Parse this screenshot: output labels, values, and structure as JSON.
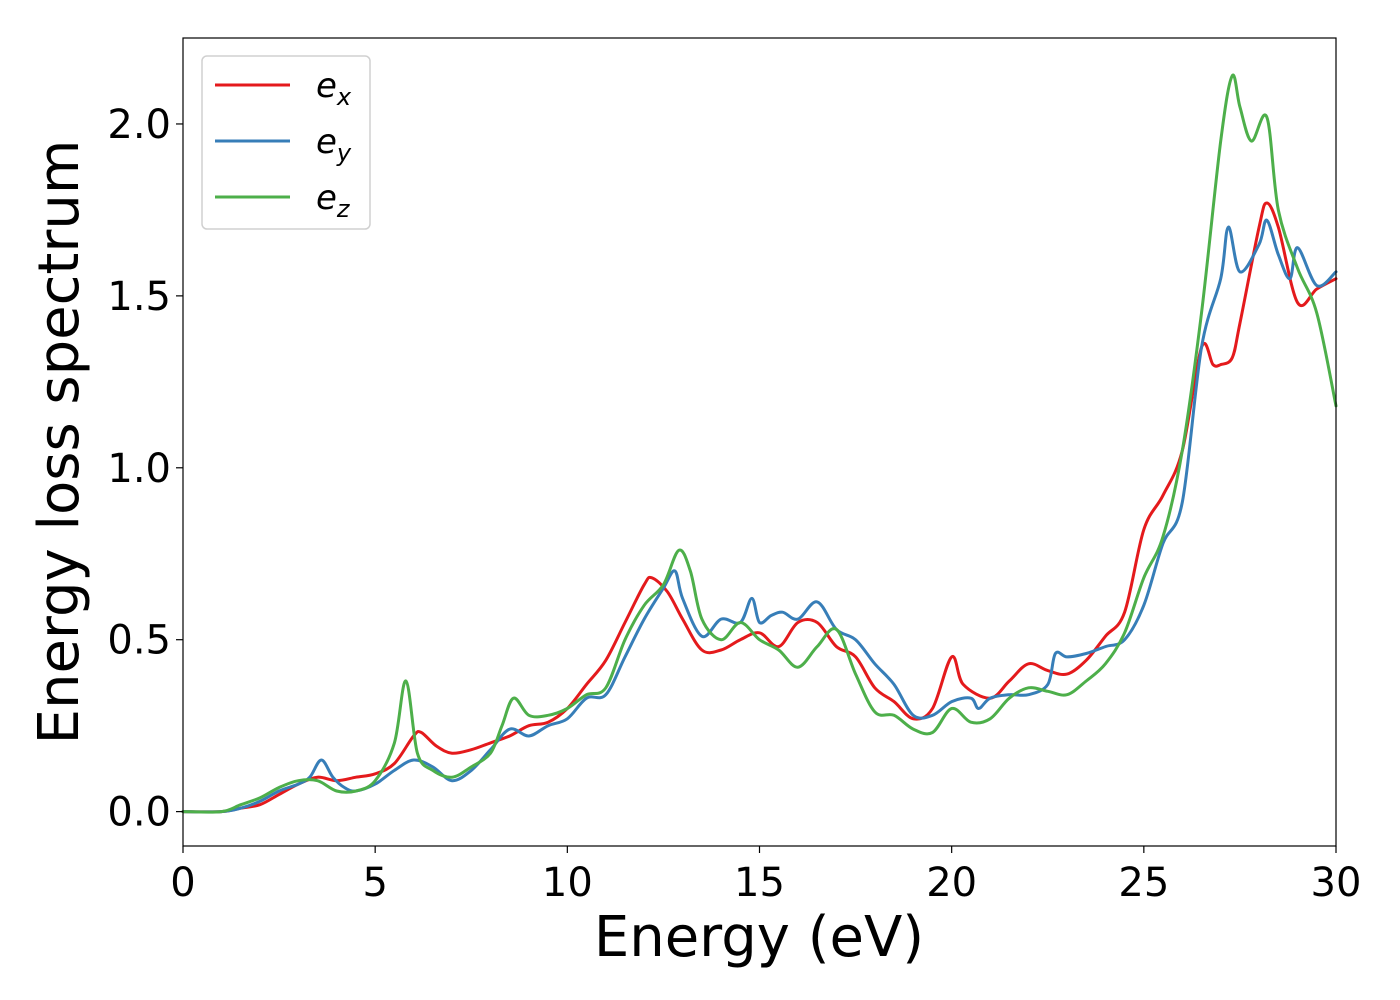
{
  "chart_data": {
    "type": "line",
    "title": "",
    "xlabel": "Energy (eV)",
    "ylabel": "Energy loss spectrum",
    "xlim": [
      0,
      30
    ],
    "ylim": [
      -0.1,
      2.25
    ],
    "xticks": [
      0,
      5,
      10,
      15,
      20,
      25,
      30
    ],
    "xtick_labels": [
      "0",
      "5",
      "10",
      "15",
      "20",
      "25",
      "30"
    ],
    "yticks": [
      0,
      0.5,
      1.0,
      1.5,
      2.0
    ],
    "ytick_labels": [
      "0.0",
      "0.5",
      "1.0",
      "1.5",
      "2.0"
    ],
    "grid": false,
    "legend_position": "top-left",
    "series": [
      {
        "name": "e",
        "subscript": "x",
        "color": "#e41a1c",
        "x": [
          0,
          1,
          1.5,
          2,
          2.5,
          3,
          3.5,
          4,
          4.5,
          5,
          5.5,
          6,
          6.2,
          6.6,
          7,
          7.5,
          8,
          8.5,
          9,
          9.5,
          10,
          10.5,
          11,
          11.5,
          12,
          12.2,
          12.6,
          13,
          13.5,
          14,
          14.5,
          15,
          15.5,
          16,
          16.5,
          17,
          17.5,
          18,
          18.5,
          19,
          19.5,
          20,
          20.3,
          21,
          21.5,
          22,
          22.5,
          23,
          23.5,
          24,
          24.5,
          25,
          25.5,
          26,
          26.5,
          26.8,
          27,
          27.3,
          27.5,
          28,
          28.2,
          28.5,
          29,
          29.5,
          30
        ],
        "y": [
          0,
          0,
          0.01,
          0.02,
          0.05,
          0.08,
          0.1,
          0.09,
          0.1,
          0.11,
          0.14,
          0.22,
          0.23,
          0.19,
          0.17,
          0.18,
          0.2,
          0.22,
          0.25,
          0.26,
          0.3,
          0.37,
          0.44,
          0.55,
          0.66,
          0.68,
          0.64,
          0.56,
          0.47,
          0.47,
          0.5,
          0.52,
          0.48,
          0.55,
          0.55,
          0.48,
          0.45,
          0.36,
          0.32,
          0.27,
          0.3,
          0.45,
          0.37,
          0.33,
          0.38,
          0.43,
          0.41,
          0.4,
          0.44,
          0.51,
          0.58,
          0.82,
          0.92,
          1.05,
          1.35,
          1.3,
          1.3,
          1.32,
          1.42,
          1.7,
          1.77,
          1.7,
          1.48,
          1.52,
          1.55
        ]
      },
      {
        "name": "e",
        "subscript": "y",
        "color": "#377eb8",
        "x": [
          0,
          1,
          1.5,
          2,
          2.5,
          3,
          3.3,
          3.6,
          3.9,
          4.2,
          4.5,
          5,
          5.5,
          6,
          6.5,
          7,
          7.5,
          8,
          8.5,
          9,
          9.5,
          10,
          10.5,
          11,
          11.5,
          12,
          12.5,
          12.8,
          13,
          13.5,
          14,
          14.5,
          14.8,
          15,
          15.3,
          15.6,
          16,
          16.5,
          17,
          17.5,
          18,
          18.5,
          19,
          19.5,
          20,
          20.5,
          20.7,
          21,
          21.5,
          22,
          22.5,
          22.7,
          23,
          23.5,
          24,
          24.5,
          25,
          25.5,
          26,
          26.5,
          27,
          27.2,
          27.5,
          28,
          28.2,
          28.5,
          28.8,
          29,
          29.5,
          30
        ],
        "y": [
          0,
          0,
          0.01,
          0.03,
          0.06,
          0.08,
          0.1,
          0.15,
          0.1,
          0.07,
          0.06,
          0.08,
          0.12,
          0.15,
          0.13,
          0.09,
          0.12,
          0.18,
          0.24,
          0.22,
          0.25,
          0.27,
          0.33,
          0.34,
          0.45,
          0.56,
          0.65,
          0.7,
          0.62,
          0.51,
          0.56,
          0.55,
          0.62,
          0.55,
          0.57,
          0.58,
          0.56,
          0.61,
          0.53,
          0.5,
          0.43,
          0.37,
          0.28,
          0.28,
          0.32,
          0.33,
          0.3,
          0.33,
          0.34,
          0.34,
          0.37,
          0.46,
          0.45,
          0.46,
          0.48,
          0.5,
          0.6,
          0.78,
          0.9,
          1.35,
          1.55,
          1.7,
          1.57,
          1.65,
          1.72,
          1.62,
          1.55,
          1.64,
          1.53,
          1.57
        ]
      },
      {
        "name": "e",
        "subscript": "z",
        "color": "#4daf4a",
        "x": [
          0,
          1,
          1.5,
          2,
          2.5,
          3,
          3.5,
          4,
          4.5,
          5,
          5.5,
          5.8,
          6.1,
          6.5,
          7,
          7.5,
          8,
          8.3,
          8.6,
          9,
          9.5,
          10,
          10.5,
          11,
          11.5,
          12,
          12.5,
          12.9,
          13.2,
          13.5,
          14,
          14.5,
          15,
          15.5,
          16,
          16.5,
          17,
          17.5,
          18,
          18.5,
          19,
          19.5,
          20,
          20.5,
          21,
          21.5,
          22,
          22.5,
          23,
          23.5,
          24,
          24.5,
          25,
          25.5,
          26,
          26.5,
          27,
          27.3,
          27.5,
          27.8,
          28.2,
          28.5,
          29,
          29.5,
          30
        ],
        "y": [
          0,
          0,
          0.02,
          0.04,
          0.07,
          0.09,
          0.09,
          0.06,
          0.06,
          0.09,
          0.2,
          0.38,
          0.17,
          0.12,
          0.1,
          0.13,
          0.17,
          0.25,
          0.33,
          0.28,
          0.28,
          0.3,
          0.34,
          0.36,
          0.5,
          0.6,
          0.66,
          0.76,
          0.7,
          0.56,
          0.5,
          0.55,
          0.5,
          0.47,
          0.42,
          0.48,
          0.53,
          0.4,
          0.29,
          0.28,
          0.24,
          0.23,
          0.3,
          0.26,
          0.27,
          0.33,
          0.36,
          0.35,
          0.34,
          0.38,
          0.43,
          0.52,
          0.68,
          0.8,
          1.05,
          1.45,
          1.95,
          2.14,
          2.05,
          1.95,
          2.02,
          1.75,
          1.58,
          1.45,
          1.18
        ]
      }
    ]
  }
}
